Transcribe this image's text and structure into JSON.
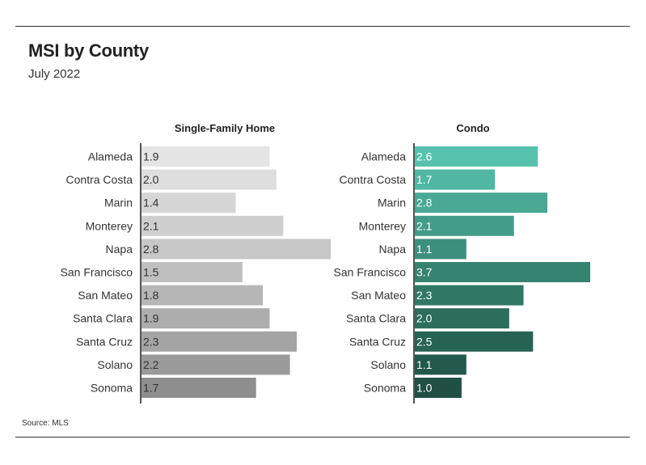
{
  "title": "MSI by County",
  "subtitle": "July 2022",
  "source": "Source: MLS",
  "chart_data": [
    {
      "type": "bar",
      "orientation": "horizontal",
      "title": "Single-Family Home",
      "categories": [
        "Alameda",
        "Contra Costa",
        "Marin",
        "Monterey",
        "Napa",
        "San Francisco",
        "San Mateo",
        "Santa Clara",
        "Santa Cruz",
        "Solano",
        "Sonoma"
      ],
      "values": [
        1.9,
        2.0,
        1.4,
        2.1,
        2.8,
        1.5,
        1.8,
        1.9,
        2.3,
        2.2,
        1.7
      ],
      "labels": [
        "1.9",
        "2.0",
        "1.4",
        "2.1",
        "2.8",
        "1.5",
        "1.8",
        "1.9",
        "2.3",
        "2.2",
        "1.7"
      ],
      "colors": [
        "#e5e5e5",
        "#dedede",
        "#d6d6d6",
        "#cfcfcf",
        "#c7c7c7",
        "#bfbfbf",
        "#b6b6b6",
        "#adadad",
        "#a4a4a4",
        "#9a9a9a",
        "#8e8e8e"
      ],
      "label_color": "#333333",
      "xlim": [
        0,
        2.8
      ]
    },
    {
      "type": "bar",
      "orientation": "horizontal",
      "title": "Condo",
      "categories": [
        "Alameda",
        "Contra Costa",
        "Marin",
        "Monterey",
        "Napa",
        "San Francisco",
        "San Mateo",
        "Santa Clara",
        "Santa Cruz",
        "Solano",
        "Sonoma"
      ],
      "values": [
        2.6,
        1.7,
        2.8,
        2.1,
        1.1,
        3.7,
        2.3,
        2.0,
        2.5,
        1.1,
        1.0
      ],
      "labels": [
        "2.6",
        "1.7",
        "2.8",
        "2.1",
        "1.1",
        "3.7",
        "2.3",
        "2.0",
        "2.5",
        "1.1",
        "1.0"
      ],
      "colors": [
        "#56c2ae",
        "#50b7a3",
        "#49a995",
        "#439c89",
        "#3d8f7d",
        "#378371",
        "#317766",
        "#2c6d5c",
        "#276353",
        "#23594a",
        "#1f5042"
      ],
      "label_color": "#ffffff",
      "xlim": [
        0,
        3.7
      ]
    }
  ]
}
